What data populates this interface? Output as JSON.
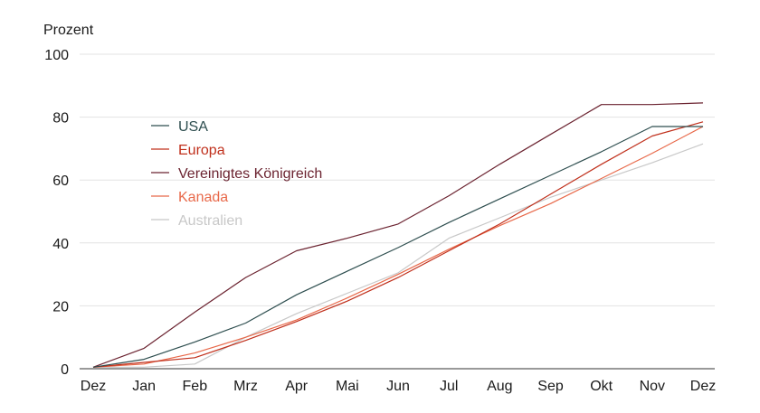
{
  "chart_data": {
    "type": "line",
    "title": "",
    "ylabel": "Prozent",
    "xlabel": "",
    "categories": [
      "Dez",
      "Jan",
      "Feb",
      "Mrz",
      "Apr",
      "Mai",
      "Jun",
      "Jul",
      "Aug",
      "Sep",
      "Okt",
      "Nov",
      "Dez"
    ],
    "ylim": [
      0,
      100
    ],
    "yticks": [
      0,
      20,
      40,
      60,
      80,
      100
    ],
    "grid": true,
    "legend_position": "top-left",
    "series": [
      {
        "name": "USA",
        "color": "#2e4e4f",
        "values": [
          0.5,
          3,
          8.5,
          14.5,
          23.5,
          31,
          38.5,
          46.5,
          54,
          61.5,
          69,
          77,
          77
        ]
      },
      {
        "name": "Europa",
        "color": "#c0301c",
        "values": [
          0.5,
          2,
          3.5,
          9,
          15,
          21.5,
          29,
          37.5,
          46,
          55.5,
          65,
          74,
          78.5
        ]
      },
      {
        "name": "Vereinigtes Königreich",
        "color": "#6b2330",
        "values": [
          0.5,
          6.5,
          18,
          29,
          37.5,
          41.5,
          46,
          55,
          65,
          74.5,
          84,
          84,
          84.5
        ]
      },
      {
        "name": "Kanada",
        "color": "#e8694a",
        "values": [
          0.5,
          1.5,
          5,
          10,
          15.5,
          22.5,
          30,
          38,
          45.5,
          52.5,
          60.5,
          68.5,
          77
        ]
      },
      {
        "name": "Australien",
        "color": "#c8c8c8",
        "values": [
          0.5,
          0.5,
          1.5,
          10,
          17.5,
          24,
          30.5,
          41.5,
          48,
          54.5,
          60,
          65.5,
          71.5
        ]
      }
    ]
  }
}
